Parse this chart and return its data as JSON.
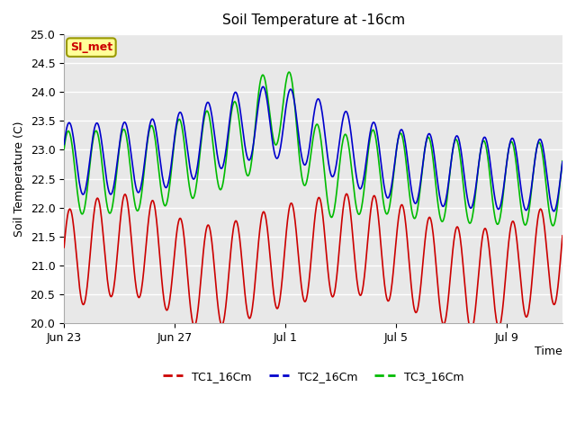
{
  "title": "Soil Temperature at -16cm",
  "xlabel": "Time",
  "ylabel": "Soil Temperature (C)",
  "ylim": [
    20.0,
    25.0
  ],
  "yticks": [
    20.0,
    20.5,
    21.0,
    21.5,
    22.0,
    22.5,
    23.0,
    23.5,
    24.0,
    24.5,
    25.0
  ],
  "xtick_labels": [
    "Jun 23",
    "Jun 27",
    "Jul 1",
    "Jul 5",
    "Jul 9"
  ],
  "xtick_positions": [
    0,
    4,
    8,
    12,
    16
  ],
  "fig_bg_color": "#ffffff",
  "plot_bg_color": "#e8e8e8",
  "grid_color": "#ffffff",
  "tc1_color": "#cc0000",
  "tc2_color": "#0000cc",
  "tc3_color": "#00bb00",
  "annotation_text": "SI_met",
  "annotation_color": "#cc0000",
  "annotation_bg": "#ffff99",
  "annotation_edge": "#999900",
  "n_days": 18,
  "samples_per_day": 48
}
